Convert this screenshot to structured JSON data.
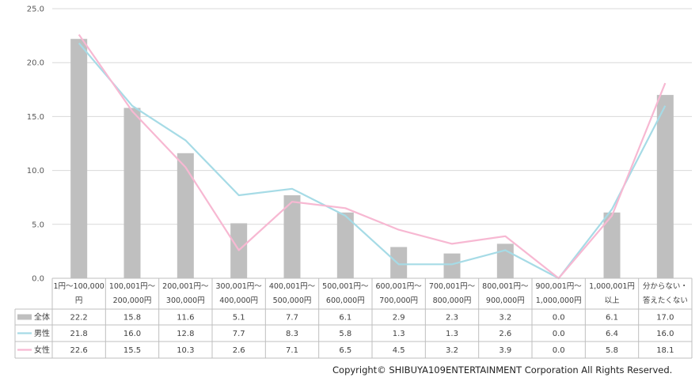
{
  "chart_data": {
    "type": "bar",
    "ylim": [
      0,
      25
    ],
    "yticks": [
      "0.0",
      "5.0",
      "10.0",
      "15.0",
      "20.0",
      "25.0"
    ],
    "grid": true,
    "categories": [
      [
        "1円～100,000",
        "円"
      ],
      [
        "100,001円～",
        "200,000円"
      ],
      [
        "200,001円～",
        "300,000円"
      ],
      [
        "300,001円～",
        "400,000円"
      ],
      [
        "400,001円～",
        "500,000円"
      ],
      [
        "500,001円～",
        "600,000円"
      ],
      [
        "600,001円～",
        "700,000円"
      ],
      [
        "700,001円～",
        "800,000円"
      ],
      [
        "800,001円～",
        "900,000円"
      ],
      [
        "900,001円～",
        "1,000,000円"
      ],
      [
        "1,000,001円",
        "以上"
      ],
      [
        "分からない・",
        "答えたくない"
      ]
    ],
    "series": [
      {
        "name": "全体",
        "type": "bar",
        "color": "#bfbfbf",
        "values": [
          22.2,
          15.8,
          11.6,
          5.1,
          7.7,
          6.1,
          2.9,
          2.3,
          3.2,
          0.0,
          6.1,
          17.0
        ],
        "labels": [
          "22.2",
          "15.8",
          "11.6",
          "5.1",
          "7.7",
          "6.1",
          "2.9",
          "2.3",
          "3.2",
          "0.0",
          "6.1",
          "17.0"
        ]
      },
      {
        "name": "男性",
        "type": "line",
        "color": "#a6dbe6",
        "values": [
          21.8,
          16.0,
          12.8,
          7.7,
          8.3,
          5.8,
          1.3,
          1.3,
          2.6,
          0.0,
          6.4,
          16.0
        ],
        "labels": [
          "21.8",
          "16.0",
          "12.8",
          "7.7",
          "8.3",
          "5.8",
          "1.3",
          "1.3",
          "2.6",
          "0.0",
          "6.4",
          "16.0"
        ]
      },
      {
        "name": "女性",
        "type": "line",
        "color": "#f7b8d2",
        "values": [
          22.6,
          15.5,
          10.3,
          2.6,
          7.1,
          6.5,
          4.5,
          3.2,
          3.9,
          0.0,
          5.8,
          18.1
        ],
        "labels": [
          "22.6",
          "15.5",
          "10.3",
          "2.6",
          "7.1",
          "6.5",
          "4.5",
          "3.2",
          "3.9",
          "0.0",
          "5.8",
          "18.1"
        ]
      }
    ]
  },
  "copyright": "Copyright© SHIBUYA109ENTERTAINMENT Corporation All Rights Reserved."
}
